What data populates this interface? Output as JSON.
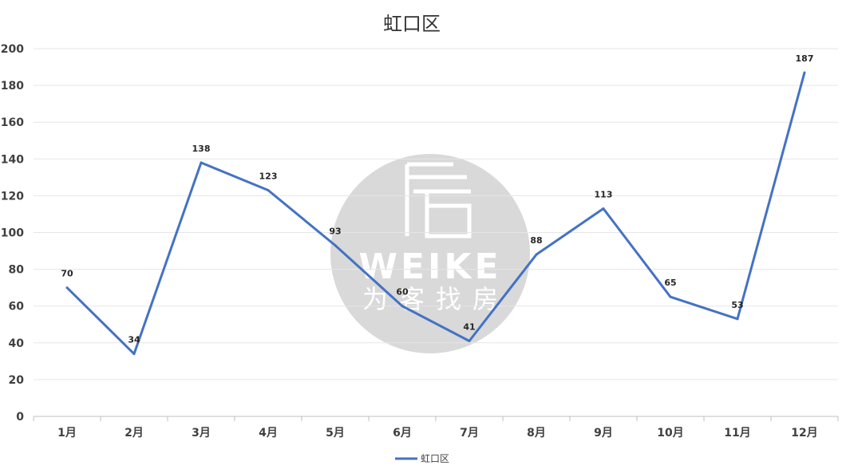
{
  "chart_data": {
    "type": "line",
    "title": "虹口区",
    "categories": [
      "1月",
      "2月",
      "3月",
      "4月",
      "5月",
      "6月",
      "7月",
      "8月",
      "9月",
      "10月",
      "11月",
      "12月"
    ],
    "series": [
      {
        "name": "虹口区",
        "color": "#4472C4",
        "values": [
          70,
          34,
          138,
          123,
          93,
          60,
          41,
          88,
          113,
          65,
          53,
          187
        ]
      }
    ],
    "ylim": [
      0,
      200
    ],
    "yticks": [
      0,
      20,
      40,
      60,
      80,
      100,
      120,
      140,
      160,
      180,
      200
    ],
    "grid": true,
    "legend": "bottom",
    "data_labels": true
  },
  "watermark": {
    "letters": "WEIKE",
    "chinese": "为客找房",
    "color": "#d9d9d9",
    "icon": "house-logo-icon"
  }
}
